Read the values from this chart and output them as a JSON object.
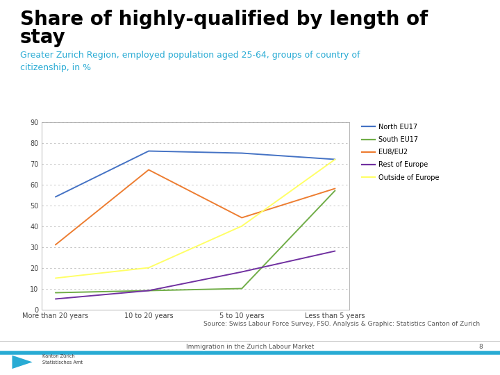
{
  "title_line1": "Share of highly-qualified by length of",
  "title_line2": "stay",
  "subtitle": "Greater Zurich Region, employed population aged 25-64, groups of country of\ncitizenship, in %",
  "title_color": "#000000",
  "subtitle_color": "#29ABD4",
  "source": "Source: Swiss Labour Force Survey, FSO. Analysis & Graphic: Statistics Canton of Zurich",
  "x_labels": [
    "More than 20 years",
    "10 to 20 years",
    "5 to 10 years",
    "Less than 5 years"
  ],
  "series": [
    {
      "name": "North EU17",
      "color": "#4472C4",
      "values": [
        54,
        76,
        75,
        72
      ]
    },
    {
      "name": "South EU17",
      "color": "#70AD47",
      "values": [
        8,
        9,
        10,
        57
      ]
    },
    {
      "name": "EU8/EU2",
      "color": "#ED7D31",
      "values": [
        31,
        67,
        44,
        58
      ]
    },
    {
      "name": "Rest of Europe",
      "color": "#7030A0",
      "values": [
        5,
        9,
        18,
        28
      ]
    },
    {
      "name": "Outside of Europe",
      "color": "#FFFF66",
      "values": [
        15,
        20,
        40,
        72
      ]
    }
  ],
  "ylim": [
    0,
    90
  ],
  "yticks": [
    0,
    10,
    20,
    30,
    40,
    50,
    60,
    70,
    80,
    90
  ],
  "background_color": "#FFFFFF",
  "grid_color": "#BBBBBB",
  "border_color": "#AAAAAA",
  "footer_text": "Immigration in the Zurich Labour Market",
  "page_number": "8",
  "accent_color": "#29ABD4",
  "title_fontsize": 20,
  "subtitle_fontsize": 9,
  "tick_fontsize": 7,
  "legend_fontsize": 7,
  "source_fontsize": 6.5,
  "footer_fontsize": 6.5
}
